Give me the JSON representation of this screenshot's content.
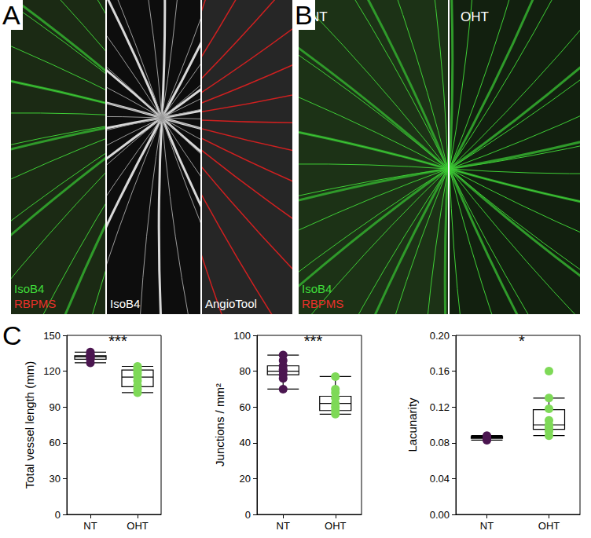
{
  "panels": [
    {
      "letter": "A",
      "sections": [
        {
          "labels": [
            {
              "text": "IsoB4",
              "color": "#3fdc3a"
            },
            {
              "text": "RBPMS",
              "color": "#e8302a"
            }
          ]
        },
        {
          "labels": [
            {
              "text": "IsoB4",
              "color": "#ffffff"
            }
          ]
        },
        {
          "labels": [
            {
              "text": "AngioTool",
              "color": "#ffffff"
            }
          ]
        }
      ]
    },
    {
      "letter": "B",
      "sections": [
        {
          "header": "NT",
          "labels": [
            {
              "text": "IsoB4",
              "color": "#3fdc3a"
            },
            {
              "text": "RBPMS",
              "color": "#e8302a"
            }
          ]
        },
        {
          "header": "OHT",
          "labels": []
        }
      ]
    },
    {
      "letter": "C"
    }
  ],
  "chart_data": [
    {
      "type": "boxplot",
      "y_label": "Total vessel length (mm)",
      "categories": [
        "NT",
        "OHT"
      ],
      "colors": [
        "#4b1650",
        "#7ed957"
      ],
      "boxes": [
        [
          127,
          130,
          132,
          133,
          136
        ],
        [
          102,
          107,
          115,
          121,
          124
        ]
      ],
      "points": [
        [
          127,
          130,
          131,
          132,
          133,
          134,
          136
        ],
        [
          102,
          105,
          108,
          112,
          115,
          118,
          120,
          122,
          124
        ]
      ],
      "ylim": [
        0,
        150
      ],
      "yticks": [
        0,
        30,
        60,
        90,
        120,
        150
      ],
      "annotation": "***",
      "grid": false
    },
    {
      "type": "boxplot",
      "y_label": "Junctions / mm²",
      "categories": [
        "NT",
        "OHT"
      ],
      "colors": [
        "#4b1650",
        "#7ed957"
      ],
      "boxes": [
        [
          70,
          78,
          80,
          83,
          89
        ],
        [
          56,
          58,
          62,
          66,
          77
        ]
      ],
      "points": [
        [
          70,
          76,
          78,
          80,
          81,
          83,
          86,
          89
        ],
        [
          56,
          58,
          60,
          62,
          65,
          68,
          70,
          77
        ]
      ],
      "ylim": [
        0,
        100
      ],
      "yticks": [
        0,
        20,
        40,
        60,
        80,
        100
      ],
      "annotation": "***",
      "grid": false
    },
    {
      "type": "boxplot",
      "y_label": "Lacunarity",
      "categories": [
        "NT",
        "OHT"
      ],
      "colors": [
        "#4b1650",
        "#7ed957"
      ],
      "boxes": [
        [
          0.083,
          0.085,
          0.086,
          0.087,
          0.088
        ],
        [
          0.088,
          0.095,
          0.1,
          0.117,
          0.13
        ]
      ],
      "points": [
        [
          0.083,
          0.085,
          0.086,
          0.086,
          0.087,
          0.088
        ],
        [
          0.088,
          0.093,
          0.097,
          0.1,
          0.105,
          0.118,
          0.13,
          0.16
        ]
      ],
      "ylim": [
        0,
        0.2
      ],
      "yticks": [
        {
          "value": 0,
          "label": "0.00"
        },
        {
          "value": 0.04,
          "label": "0.04"
        },
        {
          "value": 0.08,
          "label": "0.08"
        },
        {
          "value": 0.12,
          "label": "0.12"
        },
        {
          "value": 0.16,
          "label": "0.16"
        },
        {
          "value": 0.2,
          "label": "0.20"
        }
      ],
      "annotation": "*",
      "grid": false
    }
  ]
}
